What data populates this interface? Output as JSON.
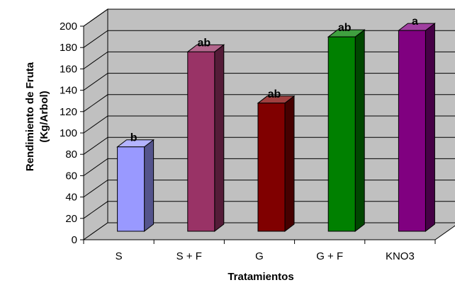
{
  "chart_data": {
    "type": "bar",
    "categories": [
      "S",
      "S + F",
      "G",
      "G + F",
      "KNO3"
    ],
    "values": [
      79,
      168,
      120,
      182,
      188
    ],
    "significance_letters": [
      "b",
      "ab",
      "ab",
      "ab",
      "a"
    ],
    "bar_colors": [
      "#9999FF",
      "#993366",
      "#800000",
      "#008000",
      "#800080"
    ],
    "xlabel": "Tratamientos",
    "ylabel_line1": "Rendimiento de Fruta",
    "ylabel_line2": "(Kg/Arbol)",
    "ylim": [
      0,
      200
    ],
    "yticks": [
      0,
      20,
      40,
      60,
      80,
      100,
      120,
      140,
      160,
      180,
      200
    ],
    "grid": true,
    "wall_color": "#C0C0C0",
    "floor_color": "#C0C0C0"
  }
}
